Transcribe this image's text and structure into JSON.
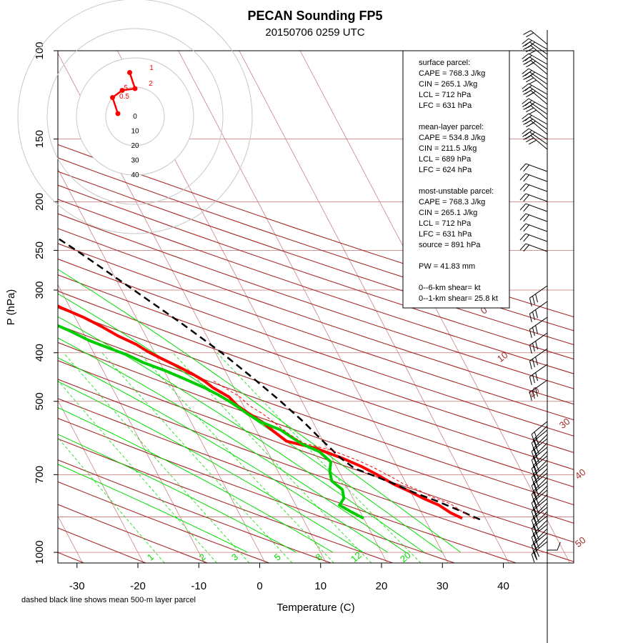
{
  "title": "PECAN Sounding FP5",
  "subtitle": "20150706 0259 UTC",
  "note": "dashed black line shows mean 500-m layer parcel",
  "colors": {
    "temperature": "#ff0000",
    "dewpoint": "#00cc00",
    "parcel": "#000000",
    "virtual_temperature": "#ff0000",
    "dry_adiabat": "#a52a2a",
    "moist_adiabat": "#00dd00",
    "mixing_ratio": "#00dd00",
    "isobar": "#c87070",
    "isotherm": "#c87070"
  },
  "info_box": [
    "surface parcel:",
    "CAPE = 768.3 J/kg",
    "CIN = 265.1 J/kg",
    "LCL = 712 hPa",
    "LFC = 631 hPa",
    "",
    "mean-layer parcel:",
    "CAPE = 534.8 J/kg",
    "CIN = 211.5 J/kg",
    "LCL = 689 hPa",
    "LFC = 624 hPa",
    "",
    "most-unstable parcel:",
    "CAPE = 768.3 J/kg",
    "CIN = 265.1 J/kg",
    "LCL = 712 hPa",
    "LFC = 631 hPa",
    "source = 891 hPa",
    "",
    "PW =  41.83 mm",
    "",
    "0--6-km shear=  kt",
    "0--1-km shear= 25.8 kt"
  ],
  "dry_adiabat_labels": [
    "0",
    "10",
    "20",
    "30",
    "40",
    "50"
  ],
  "mixing_ratio_labels": [
    "1",
    "2",
    "3",
    "5",
    "8",
    "12",
    "20"
  ],
  "hodograph": {
    "ring_labels": [
      "0",
      "10",
      "20",
      "30",
      "40"
    ],
    "point_labels": [
      "1",
      "2",
      "5",
      "0.5"
    ],
    "points": [
      [
        -4,
        1
      ],
      [
        -6.5,
        5.5
      ],
      [
        -2,
        7.5
      ],
      [
        4,
        8
      ],
      [
        1.5,
        12.5
      ]
    ]
  },
  "chart_data": {
    "type": "line",
    "subtype": "skew-T log-p diagram",
    "title": "PECAN Sounding FP5",
    "subtitle": "20150706 0259 UTC",
    "xlabel": "Temperature (C)",
    "ylabel": "P (hPa)",
    "x_ticks": [
      "-30",
      "-20",
      "-10",
      "0",
      "10",
      "20",
      "30",
      "40"
    ],
    "y_ticks": [
      "100",
      "150",
      "200",
      "250",
      "300",
      "400",
      "500",
      "700",
      "1000"
    ],
    "xlim": [
      -31.5,
      41.5
    ],
    "ylim": [
      1050,
      100
    ],
    "y_scale": "log",
    "series": [
      {
        "role": "temperature",
        "points": [
          [
            36.2,
            855
          ],
          [
            34.8,
            835
          ],
          [
            33.5,
            805
          ],
          [
            31.5,
            780
          ],
          [
            29.8,
            755
          ],
          [
            27.8,
            730
          ],
          [
            26.0,
            700
          ],
          [
            24.2,
            675
          ],
          [
            21.8,
            650
          ],
          [
            18.2,
            620
          ],
          [
            14.0,
            600
          ],
          [
            12.8,
            575
          ],
          [
            11.7,
            550
          ],
          [
            10.3,
            530
          ],
          [
            9.0,
            510
          ],
          [
            8.4,
            490
          ],
          [
            6.6,
            470
          ],
          [
            5.7,
            455
          ],
          [
            4.3,
            440
          ],
          [
            2.5,
            425
          ],
          [
            0.5,
            410
          ],
          [
            -1.0,
            398
          ],
          [
            -2.3,
            385
          ],
          [
            -4.6,
            370
          ],
          [
            -6.4,
            355
          ],
          [
            -8.6,
            340
          ],
          [
            -11.5,
            325
          ],
          [
            -14.0,
            310
          ],
          [
            -16.8,
            298
          ],
          [
            -19.0,
            285
          ],
          [
            -22.5,
            270
          ],
          [
            -25.5,
            257
          ],
          [
            -28.8,
            245
          ],
          [
            -32.0,
            233
          ],
          [
            -35.5,
            222
          ],
          [
            -39.0,
            212
          ],
          [
            -42.0,
            202
          ],
          [
            -45.0,
            193
          ],
          [
            -48.0,
            184
          ],
          [
            -51.0,
            175
          ],
          [
            -54.0,
            167
          ],
          [
            -56.5,
            160
          ],
          [
            -58.0,
            156
          ],
          [
            -55.5,
            154
          ],
          [
            -54.0,
            152
          ],
          [
            -53.0,
            146
          ],
          [
            -53.5,
            141
          ],
          [
            -51.0,
            137
          ],
          [
            -49.0,
            133
          ],
          [
            -47.0,
            129
          ],
          [
            -45.5,
            125
          ],
          [
            -44.5,
            121
          ],
          [
            -43.5,
            117
          ],
          [
            -41.5,
            113
          ],
          [
            -40.0,
            108
          ],
          [
            -39.0,
            105
          ],
          [
            -38.0,
            102
          ],
          [
            -37.5,
            100
          ]
        ]
      },
      {
        "role": "dewpoint",
        "points": [
          [
            20.0,
            855
          ],
          [
            18.5,
            830
          ],
          [
            17.2,
            805
          ],
          [
            18.5,
            780
          ],
          [
            19.0,
            750
          ],
          [
            18.0,
            720
          ],
          [
            18.5,
            690
          ],
          [
            19.5,
            660
          ],
          [
            18.5,
            630
          ],
          [
            16.5,
            610
          ],
          [
            15.2,
            590
          ],
          [
            14.0,
            570
          ],
          [
            11.5,
            550
          ],
          [
            10.0,
            530
          ],
          [
            8.5,
            505
          ],
          [
            6.8,
            485
          ],
          [
            5.2,
            470
          ],
          [
            2.5,
            450
          ],
          [
            0.3,
            435
          ],
          [
            -2.8,
            418
          ],
          [
            -4.5,
            405
          ],
          [
            -7.0,
            392
          ],
          [
            -9.7,
            378
          ],
          [
            -12.0,
            362
          ],
          [
            -15.0,
            345
          ],
          [
            -19.0,
            328
          ],
          [
            -22.0,
            315
          ],
          [
            -26.0,
            300
          ],
          [
            -29.0,
            288
          ],
          [
            -32.5,
            275
          ],
          [
            -36.0,
            262
          ],
          [
            -40.0,
            250
          ],
          [
            -43.5,
            240
          ],
          [
            -47.0,
            230
          ],
          [
            -50.0,
            221
          ],
          [
            -53.0,
            212
          ],
          [
            -56.5,
            205
          ],
          [
            -60.0,
            200
          ],
          [
            -62.0,
            195
          ],
          [
            -64.5,
            188
          ],
          [
            -67.0,
            180
          ],
          [
            -69.0,
            172
          ],
          [
            -71.0,
            165
          ],
          [
            -72.0,
            160
          ],
          [
            -74.0,
            155
          ],
          [
            -72.5,
            152
          ],
          [
            -70.5,
            148
          ],
          [
            -71.0,
            142
          ],
          [
            -70.5,
            136
          ],
          [
            -70.0,
            130
          ],
          [
            -70.5,
            124
          ],
          [
            -70.0,
            118
          ],
          [
            -69.0,
            112
          ],
          [
            -68.0,
            106
          ],
          [
            -66.5,
            102
          ],
          [
            -65.5,
            100
          ]
        ]
      },
      {
        "role": "parcel",
        "points": [
          [
            39.0,
            860
          ],
          [
            36.0,
            820
          ],
          [
            33.5,
            790
          ],
          [
            30.5,
            760
          ],
          [
            28.0,
            730
          ],
          [
            25.0,
            700
          ],
          [
            22.8,
            680
          ],
          [
            21.5,
            650
          ],
          [
            20.0,
            600
          ],
          [
            18.5,
            550
          ],
          [
            16.5,
            500
          ],
          [
            14.0,
            450
          ],
          [
            11.0,
            400
          ],
          [
            7.0,
            350
          ],
          [
            2.0,
            300
          ],
          [
            -4.0,
            250
          ],
          [
            -12.0,
            200
          ],
          [
            -22.0,
            150
          ],
          [
            -35.0,
            110
          ],
          [
            -37.5,
            103
          ]
        ]
      },
      {
        "role": "virtual_temperature",
        "points": [
          [
            38.2,
            858
          ],
          [
            36.8,
            830
          ],
          [
            35.5,
            800
          ],
          [
            33.0,
            775
          ],
          [
            31.5,
            752
          ],
          [
            29.5,
            730
          ],
          [
            28.0,
            705
          ],
          [
            26.2,
            680
          ],
          [
            24.0,
            655
          ],
          [
            20.5,
            625
          ],
          [
            16.5,
            605
          ],
          [
            15.0,
            580
          ],
          [
            13.8,
            555
          ],
          [
            12.5,
            530
          ],
          [
            11.0,
            510
          ],
          [
            10.2,
            490
          ],
          [
            8.5,
            470
          ],
          [
            7.2,
            455
          ]
        ]
      }
    ],
    "legend": "none"
  }
}
